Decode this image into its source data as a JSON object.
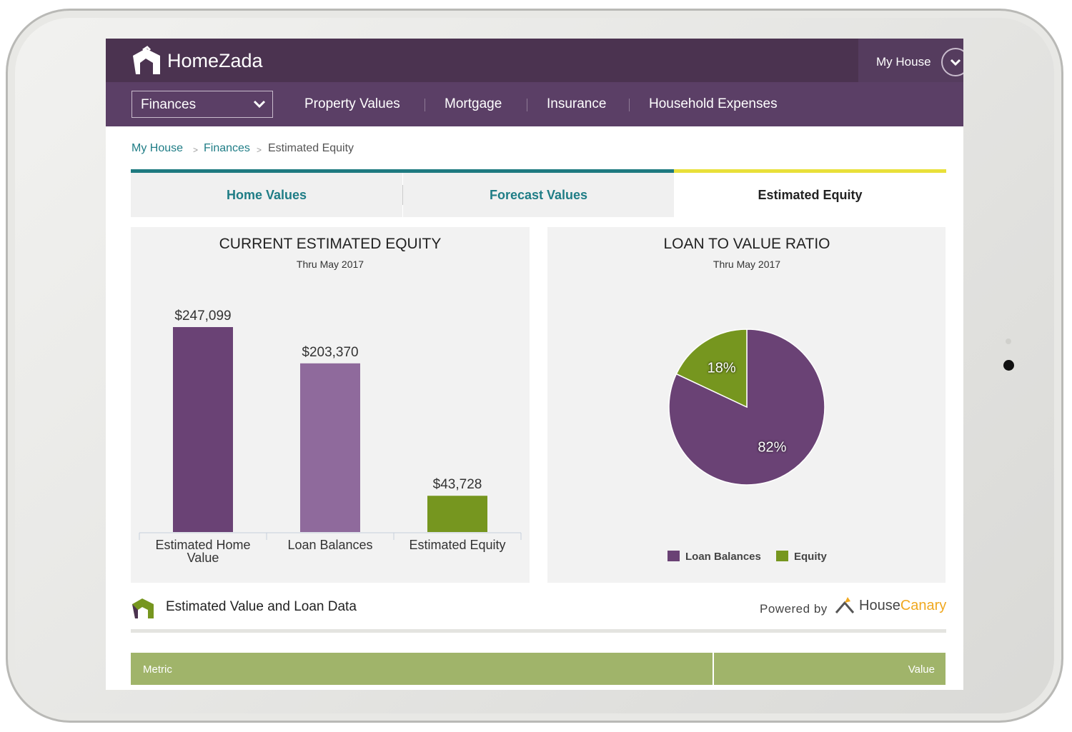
{
  "brand": "HomeZada",
  "user_menu": "My House",
  "nav": {
    "dropdown": "Finances",
    "links": [
      "Property Values",
      "Mortgage",
      "Insurance",
      "Household Expenses"
    ]
  },
  "breadcrumb": [
    "My House",
    "Finances",
    "Estimated Equity"
  ],
  "tabs": [
    "Home Values",
    "Forecast Values",
    "Estimated Equity"
  ],
  "chart_data": [
    {
      "type": "bar",
      "title": "CURRENT ESTIMATED EQUITY",
      "subtitle": "Thru May 2017",
      "categories": [
        "Estimated Home Value",
        "Loan Balances",
        "Estimated Equity"
      ],
      "values": [
        247099,
        203370,
        43728
      ],
      "value_labels": [
        "$247,099",
        "$203,370",
        "$43,728"
      ],
      "colors": [
        "#6a4275",
        "#8f6a9c",
        "#76961f"
      ]
    },
    {
      "type": "pie",
      "title": "LOAN TO VALUE RATIO",
      "subtitle": "Thru May 2017",
      "categories": [
        "Loan Balances",
        "Equity"
      ],
      "values": [
        82,
        18
      ],
      "value_labels": [
        "82%",
        "18%"
      ],
      "colors": [
        "#6a4275",
        "#76961f"
      ],
      "legend": "bottom"
    }
  ],
  "section": {
    "title": "Estimated Value and Loan Data",
    "powered_by": "Powered by",
    "provider": [
      "House",
      "Canary"
    ]
  },
  "table": {
    "headers": [
      "Metric",
      "Value"
    ]
  }
}
